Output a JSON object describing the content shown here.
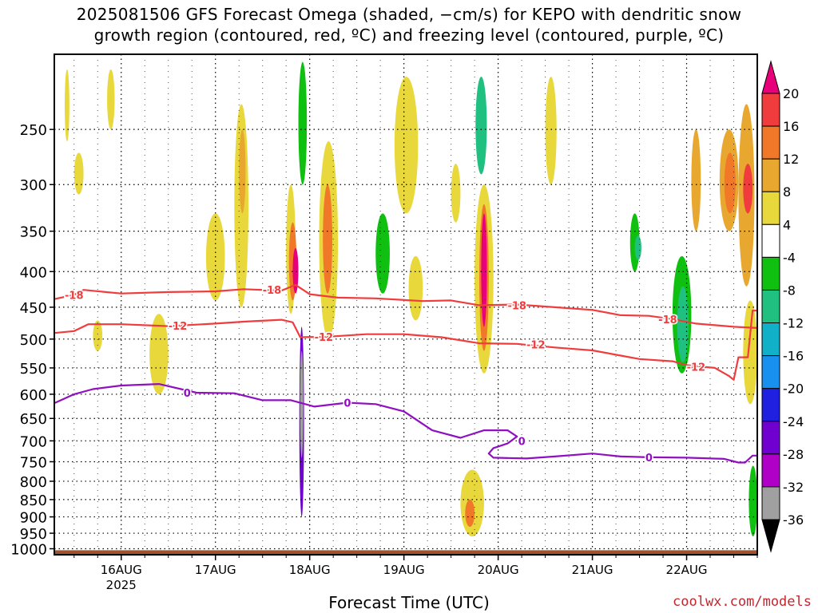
{
  "title_line1": "2025081506 GFS Forecast Omega (shaded, −cm/s) for KEPO with dendritic snow",
  "title_line2": "growth region (contoured, red, ºC) and freezing level (contoured, purple, ºC)",
  "credit": "coolwx.com/models",
  "chart_data": {
    "type": "heatmap",
    "xlabel": "Forecast Time (UTC)",
    "ylabel": "",
    "x_range_days": [
      15.29,
      22.75
    ],
    "x_ticks": [
      {
        "day": 16,
        "label": "16AUG",
        "sublabel": "2025"
      },
      {
        "day": 17,
        "label": "17AUG"
      },
      {
        "day": 18,
        "label": "18AUG"
      },
      {
        "day": 19,
        "label": "19AUG"
      },
      {
        "day": 20,
        "label": "20AUG"
      },
      {
        "day": 21,
        "label": "21AUG"
      },
      {
        "day": 22,
        "label": "22AUG"
      }
    ],
    "y_axis": "pressure (hPa)",
    "y_scale": "log",
    "ylim": [
      1020,
      195
    ],
    "y_ticks": [
      250,
      300,
      350,
      400,
      450,
      500,
      550,
      600,
      650,
      700,
      750,
      800,
      850,
      900,
      950,
      1000
    ],
    "grid": true,
    "colorbar": {
      "labels": [
        20,
        16,
        12,
        8,
        4,
        -4,
        -8,
        -12,
        -16,
        -20,
        -24,
        -28,
        -32,
        -36
      ],
      "bins": [
        {
          "lo": 20,
          "hi": null,
          "color": "#e8007a"
        },
        {
          "lo": 16,
          "hi": 20,
          "color": "#f03c3c"
        },
        {
          "lo": 12,
          "hi": 16,
          "color": "#f07828"
        },
        {
          "lo": 8,
          "hi": 12,
          "color": "#e8a830"
        },
        {
          "lo": 4,
          "hi": 8,
          "color": "#e8d83c"
        },
        {
          "lo": -4,
          "hi": 4,
          "color": "#ffffff"
        },
        {
          "lo": -8,
          "hi": -4,
          "color": "#10c010"
        },
        {
          "lo": -12,
          "hi": -8,
          "color": "#20c080"
        },
        {
          "lo": -16,
          "hi": -12,
          "color": "#10b0c8"
        },
        {
          "lo": -20,
          "hi": -16,
          "color": "#1890f0"
        },
        {
          "lo": -24,
          "hi": -20,
          "color": "#2020e0"
        },
        {
          "lo": -28,
          "hi": -24,
          "color": "#7000d0"
        },
        {
          "lo": -32,
          "hi": -28,
          "color": "#b000c8"
        },
        {
          "lo": -36,
          "hi": -32,
          "color": "#a0a0a0"
        },
        {
          "lo": null,
          "hi": -36,
          "color": "#000000"
        }
      ]
    },
    "contours": [
      {
        "value": -18,
        "label": "-18",
        "color": "#f03c3c",
        "points": [
          [
            15.29,
            438
          ],
          [
            15.5,
            432
          ],
          [
            15.6,
            425
          ],
          [
            16.0,
            430
          ],
          [
            16.5,
            428
          ],
          [
            17.0,
            427
          ],
          [
            17.3,
            424
          ],
          [
            17.7,
            426
          ],
          [
            17.85,
            418
          ],
          [
            18.0,
            431
          ],
          [
            18.3,
            436
          ],
          [
            18.7,
            437
          ],
          [
            19.2,
            441
          ],
          [
            19.5,
            440
          ],
          [
            19.8,
            447
          ],
          [
            20.2,
            446
          ],
          [
            20.6,
            450
          ],
          [
            21.0,
            454
          ],
          [
            21.3,
            462
          ],
          [
            21.6,
            463
          ],
          [
            21.85,
            468
          ],
          [
            22.1,
            475
          ],
          [
            22.5,
            480
          ],
          [
            22.75,
            482
          ]
        ]
      },
      {
        "value": -12,
        "label": "-12",
        "color": "#f03c3c",
        "points": [
          [
            15.29,
            490
          ],
          [
            15.5,
            487
          ],
          [
            15.65,
            476
          ],
          [
            16.0,
            476
          ],
          [
            16.5,
            479
          ],
          [
            17.0,
            475
          ],
          [
            17.3,
            472
          ],
          [
            17.7,
            469
          ],
          [
            17.82,
            473
          ],
          [
            17.9,
            497
          ],
          [
            18.2,
            496
          ],
          [
            18.6,
            492
          ],
          [
            19.0,
            492
          ],
          [
            19.4,
            497
          ],
          [
            19.8,
            507
          ],
          [
            20.2,
            508
          ],
          [
            20.6,
            514
          ],
          [
            21.0,
            519
          ],
          [
            21.3,
            528
          ],
          [
            21.5,
            534
          ],
          [
            21.85,
            538
          ],
          [
            22.0,
            545
          ],
          [
            22.3,
            550
          ],
          [
            22.45,
            565
          ],
          [
            22.5,
            572
          ],
          [
            22.55,
            531
          ],
          [
            22.65,
            531
          ],
          [
            22.7,
            455
          ],
          [
            22.75,
            455
          ]
        ]
      },
      {
        "value": 0,
        "label": "0",
        "color": "#9010c0",
        "points": [
          [
            15.29,
            618
          ],
          [
            15.5,
            600
          ],
          [
            15.7,
            590
          ],
          [
            16.0,
            583
          ],
          [
            16.4,
            580
          ],
          [
            16.8,
            597
          ],
          [
            17.2,
            598
          ],
          [
            17.5,
            612
          ],
          [
            17.8,
            612
          ],
          [
            18.05,
            625
          ],
          [
            18.4,
            617
          ],
          [
            18.7,
            620
          ],
          [
            19.0,
            635
          ],
          [
            19.3,
            676
          ],
          [
            19.6,
            693
          ],
          [
            19.85,
            676
          ],
          [
            20.1,
            676
          ],
          [
            20.2,
            690
          ],
          [
            20.1,
            706
          ],
          [
            19.95,
            717
          ],
          [
            19.9,
            730
          ],
          [
            19.95,
            740
          ],
          [
            20.3,
            742
          ],
          [
            20.6,
            737
          ],
          [
            21.0,
            730
          ],
          [
            21.3,
            737
          ],
          [
            21.6,
            739
          ],
          [
            22.0,
            740
          ],
          [
            22.4,
            743
          ],
          [
            22.55,
            752
          ],
          [
            22.62,
            752
          ],
          [
            22.7,
            735
          ],
          [
            22.75,
            735
          ]
        ]
      }
    ],
    "contour_labels": [
      {
        "text": "-18",
        "x": 15.5,
        "p": 432
      },
      {
        "text": "-18",
        "x": 17.6,
        "p": 425
      },
      {
        "text": "-18",
        "x": 20.2,
        "p": 447
      },
      {
        "text": "-18",
        "x": 21.8,
        "p": 468
      },
      {
        "text": "-12",
        "x": 16.6,
        "p": 478
      },
      {
        "text": "-12",
        "x": 18.15,
        "p": 496
      },
      {
        "text": "-12",
        "x": 20.4,
        "p": 509
      },
      {
        "text": "-12",
        "x": 22.1,
        "p": 548
      },
      {
        "text": "0",
        "x": 16.7,
        "p": 597
      },
      {
        "text": "0",
        "x": 18.4,
        "p": 617
      },
      {
        "text": "0",
        "x": 20.25,
        "p": 700
      },
      {
        "text": "0",
        "x": 21.6,
        "p": 739
      }
    ],
    "omega_features": [
      {
        "x0": 15.4,
        "x1": 15.45,
        "p_top": 205,
        "p_bot": 260,
        "value": 4
      },
      {
        "x0": 15.5,
        "x1": 15.6,
        "p_top": 270,
        "p_bot": 310,
        "value": 4
      },
      {
        "x0": 15.7,
        "x1": 15.8,
        "p_top": 470,
        "p_bot": 520,
        "value": 4
      },
      {
        "x0": 15.85,
        "x1": 15.93,
        "p_top": 205,
        "p_bot": 250,
        "value": 4
      },
      {
        "x0": 16.3,
        "x1": 16.5,
        "p_top": 460,
        "p_bot": 600,
        "value": 4
      },
      {
        "x0": 16.9,
        "x1": 17.1,
        "p_top": 330,
        "p_bot": 440,
        "value": 4
      },
      {
        "x0": 17.05,
        "x1": 17.2,
        "p_top": 245,
        "p_bot": 360,
        "value": -4
      },
      {
        "x0": 17.2,
        "x1": 17.35,
        "p_top": 230,
        "p_bot": 450,
        "value": 4
      },
      {
        "x0": 17.25,
        "x1": 17.32,
        "p_top": 250,
        "p_bot": 330,
        "value": 8
      },
      {
        "x0": 17.5,
        "x1": 17.62,
        "p_top": 205,
        "p_bot": 300,
        "value": -4
      },
      {
        "x0": 17.75,
        "x1": 17.85,
        "p_top": 300,
        "p_bot": 460,
        "value": 4
      },
      {
        "x0": 17.78,
        "x1": 17.86,
        "p_top": 340,
        "p_bot": 440,
        "value": 12
      },
      {
        "x0": 17.82,
        "x1": 17.88,
        "p_top": 370,
        "p_bot": 430,
        "value": 20
      },
      {
        "x0": 17.88,
        "x1": 17.97,
        "p_top": 200,
        "p_bot": 300,
        "value": -8
      },
      {
        "x0": 17.88,
        "x1": 17.97,
        "p_top": 470,
        "p_bot": 980,
        "value": -4
      },
      {
        "x0": 17.89,
        "x1": 17.94,
        "p_top": 480,
        "p_bot": 900,
        "value": -28
      },
      {
        "x0": 17.9,
        "x1": 17.93,
        "p_top": 520,
        "p_bot": 740,
        "value": -36
      },
      {
        "x0": 18.1,
        "x1": 18.3,
        "p_top": 260,
        "p_bot": 500,
        "value": 4
      },
      {
        "x0": 18.14,
        "x1": 18.24,
        "p_top": 300,
        "p_bot": 430,
        "value": 12
      },
      {
        "x0": 18.6,
        "x1": 18.95,
        "p_top": 300,
        "p_bot": 470,
        "value": -4
      },
      {
        "x0": 18.7,
        "x1": 18.85,
        "p_top": 330,
        "p_bot": 430,
        "value": -8
      },
      {
        "x0": 18.9,
        "x1": 19.15,
        "p_top": 210,
        "p_bot": 330,
        "value": 4
      },
      {
        "x0": 19.05,
        "x1": 19.2,
        "p_top": 380,
        "p_bot": 470,
        "value": 4
      },
      {
        "x0": 19.5,
        "x1": 19.6,
        "p_top": 280,
        "p_bot": 340,
        "value": 4
      },
      {
        "x0": 19.73,
        "x1": 19.93,
        "p_top": 200,
        "p_bot": 360,
        "value": -4
      },
      {
        "x0": 19.76,
        "x1": 19.88,
        "p_top": 210,
        "p_bot": 290,
        "value": -12
      },
      {
        "x0": 19.75,
        "x1": 19.95,
        "p_top": 300,
        "p_bot": 560,
        "value": 4
      },
      {
        "x0": 19.8,
        "x1": 19.9,
        "p_top": 320,
        "p_bot": 520,
        "value": 12
      },
      {
        "x0": 19.82,
        "x1": 19.88,
        "p_top": 330,
        "p_bot": 480,
        "value": 20
      },
      {
        "x0": 19.6,
        "x1": 19.85,
        "p_top": 770,
        "p_bot": 960,
        "value": 4
      },
      {
        "x0": 19.65,
        "x1": 19.75,
        "p_top": 850,
        "p_bot": 930,
        "value": 12
      },
      {
        "x0": 20.5,
        "x1": 20.62,
        "p_top": 210,
        "p_bot": 300,
        "value": 4
      },
      {
        "x0": 21.4,
        "x1": 21.5,
        "p_top": 330,
        "p_bot": 400,
        "value": -8
      },
      {
        "x0": 21.45,
        "x1": 21.52,
        "p_top": 355,
        "p_bot": 385,
        "value": -12
      },
      {
        "x0": 21.85,
        "x1": 22.05,
        "p_top": 380,
        "p_bot": 560,
        "value": -8
      },
      {
        "x0": 21.9,
        "x1": 22.02,
        "p_top": 420,
        "p_bot": 540,
        "value": -12
      },
      {
        "x0": 22.05,
        "x1": 22.15,
        "p_top": 250,
        "p_bot": 350,
        "value": 8
      },
      {
        "x0": 22.35,
        "x1": 22.55,
        "p_top": 250,
        "p_bot": 350,
        "value": 8
      },
      {
        "x0": 22.4,
        "x1": 22.52,
        "p_top": 270,
        "p_bot": 330,
        "value": 12
      },
      {
        "x0": 22.55,
        "x1": 22.72,
        "p_top": 230,
        "p_bot": 420,
        "value": 8
      },
      {
        "x0": 22.6,
        "x1": 22.7,
        "p_top": 280,
        "p_bot": 330,
        "value": 16
      },
      {
        "x0": 22.6,
        "x1": 22.75,
        "p_top": 440,
        "p_bot": 620,
        "value": 4
      },
      {
        "x0": 22.66,
        "x1": 22.75,
        "p_top": 760,
        "p_bot": 960,
        "value": -8
      }
    ]
  }
}
